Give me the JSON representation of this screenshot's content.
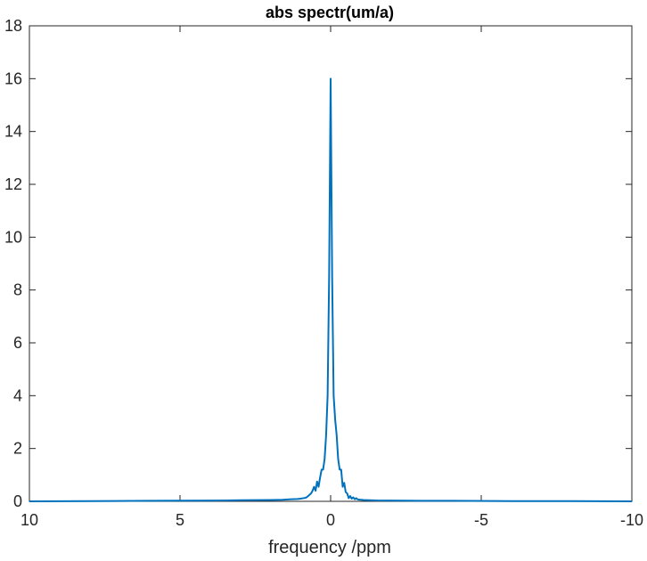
{
  "chart_data": {
    "type": "line",
    "title": "abs spectr(um/a)",
    "xlabel": "frequency /ppm",
    "ylabel": "",
    "xlim": [
      10,
      -10
    ],
    "ylim": [
      0,
      18
    ],
    "x_reversed": true,
    "grid": false,
    "box": true,
    "x_ticks": [
      10,
      5,
      0,
      -5,
      -10
    ],
    "x_tick_labels": [
      "10",
      "5",
      "0",
      "-5",
      "-10"
    ],
    "y_ticks": [
      0,
      2,
      4,
      6,
      8,
      10,
      12,
      14,
      16,
      18
    ],
    "y_tick_labels": [
      "0",
      "2",
      "4",
      "6",
      "8",
      "10",
      "12",
      "14",
      "16",
      "18"
    ],
    "series": [
      {
        "color": "#0072bd",
        "x": [
          10,
          8,
          6,
          4,
          3,
          2,
          1.6,
          1.3,
          1.1,
          1.0,
          0.9,
          0.85,
          0.8,
          0.75,
          0.7,
          0.65,
          0.6,
          0.55,
          0.5,
          0.45,
          0.4,
          0.35,
          0.3,
          0.25,
          0.2,
          0.15,
          0.1,
          0.05,
          0.0,
          -0.05,
          -0.1,
          -0.15,
          -0.2,
          -0.25,
          -0.3,
          -0.35,
          -0.4,
          -0.45,
          -0.5,
          -0.55,
          -0.6,
          -0.65,
          -0.7,
          -0.75,
          -0.8,
          -0.85,
          -0.9,
          -1.0,
          -1.1,
          -1.3,
          -1.6,
          -2,
          -3,
          -4,
          -6,
          -8,
          -10
        ],
        "y": [
          0.0,
          0.01,
          0.02,
          0.03,
          0.04,
          0.05,
          0.06,
          0.08,
          0.09,
          0.1,
          0.12,
          0.13,
          0.15,
          0.2,
          0.25,
          0.3,
          0.4,
          0.55,
          0.4,
          0.75,
          0.55,
          0.9,
          1.2,
          1.2,
          1.6,
          2.5,
          4.0,
          8.5,
          16.0,
          8.5,
          4.0,
          3.1,
          2.5,
          1.6,
          1.2,
          1.2,
          0.55,
          0.7,
          0.35,
          0.3,
          0.12,
          0.2,
          0.1,
          0.15,
          0.08,
          0.12,
          0.07,
          0.06,
          0.05,
          0.04,
          0.03,
          0.03,
          0.02,
          0.02,
          0.01,
          0.01,
          0.0
        ]
      }
    ]
  }
}
